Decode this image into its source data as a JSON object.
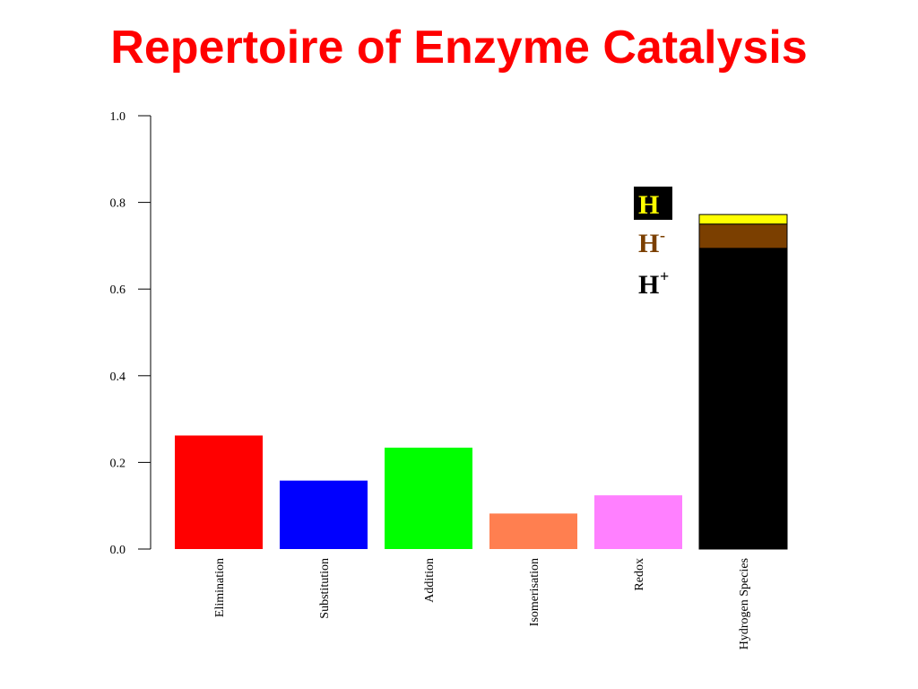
{
  "title": "Repertoire of Enzyme Catalysis",
  "colors": {
    "title": "#ff0000",
    "Elimination": "#ff0000",
    "Substitution": "#0000ff",
    "Addition": "#00ff00",
    "Isomerisation": "#ff7f50",
    "Redox": "#ff80ff",
    "H+": "#000000",
    "H-": "#7b3f00",
    "H": "#ffff00"
  },
  "legend": {
    "items": [
      {
        "base": "H",
        "sup": "",
        "color": "#ffff00",
        "boxed": true
      },
      {
        "base": "H",
        "sup": "-",
        "color": "#7b3f00",
        "boxed": false
      },
      {
        "base": "H",
        "sup": "+",
        "color": "#000000",
        "boxed": false
      }
    ]
  },
  "chart_data": {
    "type": "bar",
    "categories": [
      "Elimination",
      "Substitution",
      "Addition",
      "Isomerisation",
      "Redox",
      "Hydrogen Species"
    ],
    "values": [
      0.262,
      0.158,
      0.234,
      0.082,
      0.124,
      0.772
    ],
    "stacked": {
      "category": "Hydrogen Species",
      "segments": [
        {
          "name": "H+",
          "value": 0.694
        },
        {
          "name": "H-",
          "value": 0.056
        },
        {
          "name": "H",
          "value": 0.022
        }
      ]
    },
    "title": "",
    "xlabel": "",
    "ylabel": "",
    "ylim": [
      0,
      1.0
    ],
    "yticks": [
      "0.0",
      "0.2",
      "0.4",
      "0.6",
      "0.8",
      "1.0"
    ],
    "grid": false,
    "legend_position": "top-right"
  }
}
